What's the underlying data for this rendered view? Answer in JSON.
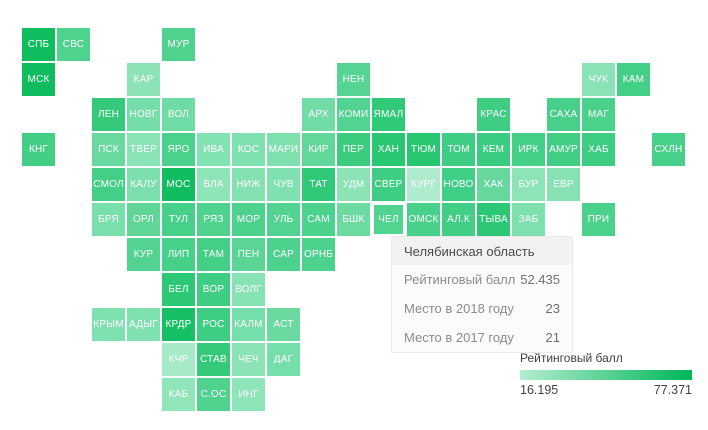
{
  "chart_data": {
    "type": "heatmap",
    "subtype": "tile-grid-cartogram",
    "measure": "Рейтинговый балл",
    "color_scale": {
      "min": 16.195,
      "max": 77.371,
      "from": "#b4edcf",
      "to": "#00b65a"
    },
    "highlighted_region": {
      "code": "ЧЕЛ",
      "name": "Челябинская область",
      "rating": 52.435,
      "place_2018": 23,
      "place_2017": 21
    },
    "tiles": [
      {
        "label": "СПБ",
        "col": 0,
        "row": 0,
        "color": "#0fbc5e"
      },
      {
        "label": "СВС",
        "col": 1,
        "row": 0,
        "color": "#4ed28e"
      },
      {
        "label": "МУР",
        "col": 4,
        "row": 0,
        "color": "#4ed28e"
      },
      {
        "label": "МСК",
        "col": 0,
        "row": 1,
        "color": "#0fbc5e"
      },
      {
        "label": "КАР",
        "col": 3,
        "row": 1,
        "color": "#8ce4b6"
      },
      {
        "label": "НЕН",
        "col": 9,
        "row": 1,
        "color": "#55d494"
      },
      {
        "label": "ЧУК",
        "col": 16,
        "row": 1,
        "color": "#89e3b5"
      },
      {
        "label": "КАМ",
        "col": 17,
        "row": 1,
        "color": "#43cf86"
      },
      {
        "label": "ЛЕН",
        "col": 2,
        "row": 2,
        "color": "#35ca7a"
      },
      {
        "label": "НОВГ",
        "col": 3,
        "row": 2,
        "color": "#74dda8"
      },
      {
        "label": "ВОЛ",
        "col": 4,
        "row": 2,
        "color": "#70dca5"
      },
      {
        "label": "АРХ",
        "col": 8,
        "row": 2,
        "color": "#72dca6"
      },
      {
        "label": "КОМИ",
        "col": 9,
        "row": 2,
        "color": "#52d391"
      },
      {
        "label": "ЯМАЛ",
        "col": 10,
        "row": 2,
        "color": "#2fc977"
      },
      {
        "label": "КРАС",
        "col": 13,
        "row": 2,
        "color": "#3ecd83"
      },
      {
        "label": "САХА",
        "col": 15,
        "row": 2,
        "color": "#48d08a"
      },
      {
        "label": "МАГ",
        "col": 16,
        "row": 2,
        "color": "#4bd18c"
      },
      {
        "label": "КНГ",
        "col": 0,
        "row": 3,
        "color": "#42ce85"
      },
      {
        "label": "ПСК",
        "col": 2,
        "row": 3,
        "color": "#68d99f"
      },
      {
        "label": "ТВЕР",
        "col": 3,
        "row": 3,
        "color": "#8be4b6"
      },
      {
        "label": "ЯРО",
        "col": 4,
        "row": 3,
        "color": "#4bd18c"
      },
      {
        "label": "ИВА",
        "col": 5,
        "row": 3,
        "color": "#83e2b1"
      },
      {
        "label": "КОС",
        "col": 6,
        "row": 3,
        "color": "#7fe1af"
      },
      {
        "label": "МАРИ",
        "col": 7,
        "row": 3,
        "color": "#7de0ad"
      },
      {
        "label": "КИР",
        "col": 8,
        "row": 3,
        "color": "#62d79a"
      },
      {
        "label": "ПЕР",
        "col": 9,
        "row": 3,
        "color": "#3bcc7f"
      },
      {
        "label": "ХАН",
        "col": 10,
        "row": 3,
        "color": "#29c772"
      },
      {
        "label": "ТЮМ",
        "col": 11,
        "row": 3,
        "color": "#27c671"
      },
      {
        "label": "ТОМ",
        "col": 12,
        "row": 3,
        "color": "#3ecd83"
      },
      {
        "label": "КЕМ",
        "col": 13,
        "row": 3,
        "color": "#3acc80"
      },
      {
        "label": "ИРК",
        "col": 14,
        "row": 3,
        "color": "#44cf87"
      },
      {
        "label": "АМУР",
        "col": 15,
        "row": 3,
        "color": "#41ce84"
      },
      {
        "label": "ХАБ",
        "col": 16,
        "row": 3,
        "color": "#3dcd82"
      },
      {
        "label": "СХЛН",
        "col": 18,
        "row": 3,
        "color": "#46d089"
      },
      {
        "label": "СМОЛ",
        "col": 2,
        "row": 4,
        "color": "#44cf87"
      },
      {
        "label": "КАЛУ",
        "col": 3,
        "row": 4,
        "color": "#7edfae"
      },
      {
        "label": "МОС",
        "col": 4,
        "row": 4,
        "color": "#12bd5f"
      },
      {
        "label": "ВЛА",
        "col": 5,
        "row": 4,
        "color": "#8ee5b8"
      },
      {
        "label": "НИЖ",
        "col": 6,
        "row": 4,
        "color": "#84e2b2"
      },
      {
        "label": "ЧУВ",
        "col": 7,
        "row": 4,
        "color": "#7fe1b0"
      },
      {
        "label": "ТАТ",
        "col": 8,
        "row": 4,
        "color": "#30c977"
      },
      {
        "label": "УДМ",
        "col": 9,
        "row": 4,
        "color": "#8ce4b6"
      },
      {
        "label": "СВЕР",
        "col": 10,
        "row": 4,
        "color": "#3ecd83"
      },
      {
        "label": "КУРГ",
        "col": 11,
        "row": 4,
        "color": "#aeeccd"
      },
      {
        "label": "НОВО",
        "col": 12,
        "row": 4,
        "color": "#3fcf87"
      },
      {
        "label": "ХАК",
        "col": 13,
        "row": 4,
        "color": "#66d89d"
      },
      {
        "label": "БУР",
        "col": 14,
        "row": 4,
        "color": "#8ce4b7"
      },
      {
        "label": "ЕВР",
        "col": 15,
        "row": 4,
        "color": "#87e3b4"
      },
      {
        "label": "БРЯ",
        "col": 2,
        "row": 5,
        "color": "#79dfab"
      },
      {
        "label": "ОРЛ",
        "col": 3,
        "row": 5,
        "color": "#5fd698"
      },
      {
        "label": "ТУЛ",
        "col": 4,
        "row": 5,
        "color": "#46d089"
      },
      {
        "label": "РЯЗ",
        "col": 5,
        "row": 5,
        "color": "#4ed28e"
      },
      {
        "label": "МОР",
        "col": 6,
        "row": 5,
        "color": "#4dd28d"
      },
      {
        "label": "УЛЬ",
        "col": 7,
        "row": 5,
        "color": "#52d391"
      },
      {
        "label": "САМ",
        "col": 8,
        "row": 5,
        "color": "#4bd28d"
      },
      {
        "label": "БШК",
        "col": 9,
        "row": 5,
        "color": "#6ddaa2"
      },
      {
        "label": "ЧЕЛ",
        "col": 10,
        "row": 5,
        "color": "#52d491",
        "selected": true
      },
      {
        "label": "ОМСК",
        "col": 11,
        "row": 5,
        "color": "#49d18b"
      },
      {
        "label": "АЛ.К",
        "col": 12,
        "row": 5,
        "color": "#42ce85"
      },
      {
        "label": "ТЫВА",
        "col": 13,
        "row": 5,
        "color": "#2dc875"
      },
      {
        "label": "ЗАБ",
        "col": 14,
        "row": 5,
        "color": "#7de0ad"
      },
      {
        "label": "ПРИ",
        "col": 16,
        "row": 5,
        "color": "#4bd18c"
      },
      {
        "label": "КУР",
        "col": 3,
        "row": 6,
        "color": "#52d391"
      },
      {
        "label": "ЛИП",
        "col": 4,
        "row": 6,
        "color": "#47d089"
      },
      {
        "label": "ТАМ",
        "col": 5,
        "row": 6,
        "color": "#43cf86"
      },
      {
        "label": "ПЕН",
        "col": 6,
        "row": 6,
        "color": "#5ad595"
      },
      {
        "label": "САР",
        "col": 7,
        "row": 6,
        "color": "#4dd28d"
      },
      {
        "label": "ОРНБ",
        "col": 8,
        "row": 6,
        "color": "#4dd28d"
      },
      {
        "label": "БЕЛ",
        "col": 4,
        "row": 7,
        "color": "#2cc876"
      },
      {
        "label": "ВОР",
        "col": 5,
        "row": 7,
        "color": "#3ecd82"
      },
      {
        "label": "ВОЛГ",
        "col": 6,
        "row": 7,
        "color": "#88e3b4"
      },
      {
        "label": "КРЫМ",
        "col": 2,
        "row": 8,
        "color": "#7fe1af"
      },
      {
        "label": "АДЫГ",
        "col": 3,
        "row": 8,
        "color": "#80e1b0"
      },
      {
        "label": "КРДР",
        "col": 4,
        "row": 8,
        "color": "#16bf63"
      },
      {
        "label": "РОС",
        "col": 5,
        "row": 8,
        "color": "#3ecd83"
      },
      {
        "label": "КАЛМ",
        "col": 6,
        "row": 8,
        "color": "#76dea9"
      },
      {
        "label": "АСТ",
        "col": 7,
        "row": 8,
        "color": "#6adaa1"
      },
      {
        "label": "КЧР",
        "col": 4,
        "row": 9,
        "color": "#a5ebc7"
      },
      {
        "label": "СТАВ",
        "col": 5,
        "row": 9,
        "color": "#35ca7a"
      },
      {
        "label": "ЧЕЧ",
        "col": 6,
        "row": 9,
        "color": "#8ce4b6"
      },
      {
        "label": "ДАГ",
        "col": 7,
        "row": 9,
        "color": "#75dea9"
      },
      {
        "label": "КАБ",
        "col": 4,
        "row": 10,
        "color": "#90e6b9"
      },
      {
        "label": "С.ОС",
        "col": 5,
        "row": 10,
        "color": "#4ed28e"
      },
      {
        "label": "ИНГ",
        "col": 6,
        "row": 10,
        "color": "#8ee5b8"
      }
    ]
  },
  "tooltip": {
    "title": "Челябинская область",
    "rows": [
      {
        "label": "Рейтинговый балл",
        "value": "52.435"
      },
      {
        "label": "Место в 2018 году",
        "value": "23"
      },
      {
        "label": "Место в 2017 году",
        "value": "21"
      }
    ]
  },
  "legend": {
    "title": "Рейтинговый балл",
    "min": "16.195",
    "max": "77.371",
    "gradient_from": "#b4edcf",
    "gradient_to": "#00b65a"
  }
}
